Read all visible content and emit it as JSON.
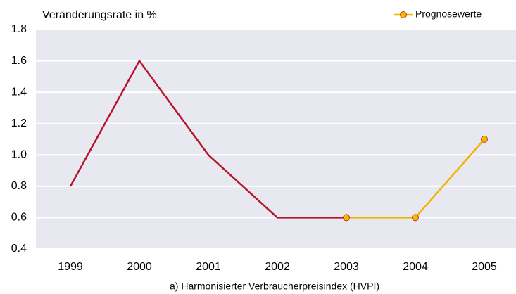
{
  "chart_data": {
    "type": "line",
    "y_axis_label": "Veränderungsrate in %",
    "x_axis_label": "a) Harmonisierter Verbraucherpreisindex (HVPI)",
    "categories": [
      "1999",
      "2000",
      "2001",
      "2002",
      "2003",
      "2004",
      "2005"
    ],
    "series": [
      {
        "color": "#b5152b",
        "values": [
          0.8,
          1.6,
          1.0,
          0.6,
          0.6,
          null,
          null
        ]
      },
      {
        "name": "Prognosewerte",
        "color": "#f0b400",
        "marker_color": "#f5b800",
        "marker_edge": "#c0392b",
        "values": [
          null,
          null,
          null,
          null,
          0.6,
          0.6,
          1.1
        ]
      }
    ],
    "ylim": [
      0.4,
      1.8
    ],
    "yticks": [
      0.4,
      0.6,
      0.8,
      {
        "value": 1,
        "label": "1.0"
      },
      1.2,
      1.4,
      1.6,
      1.8
    ],
    "grid": true,
    "legend": "upper right"
  }
}
